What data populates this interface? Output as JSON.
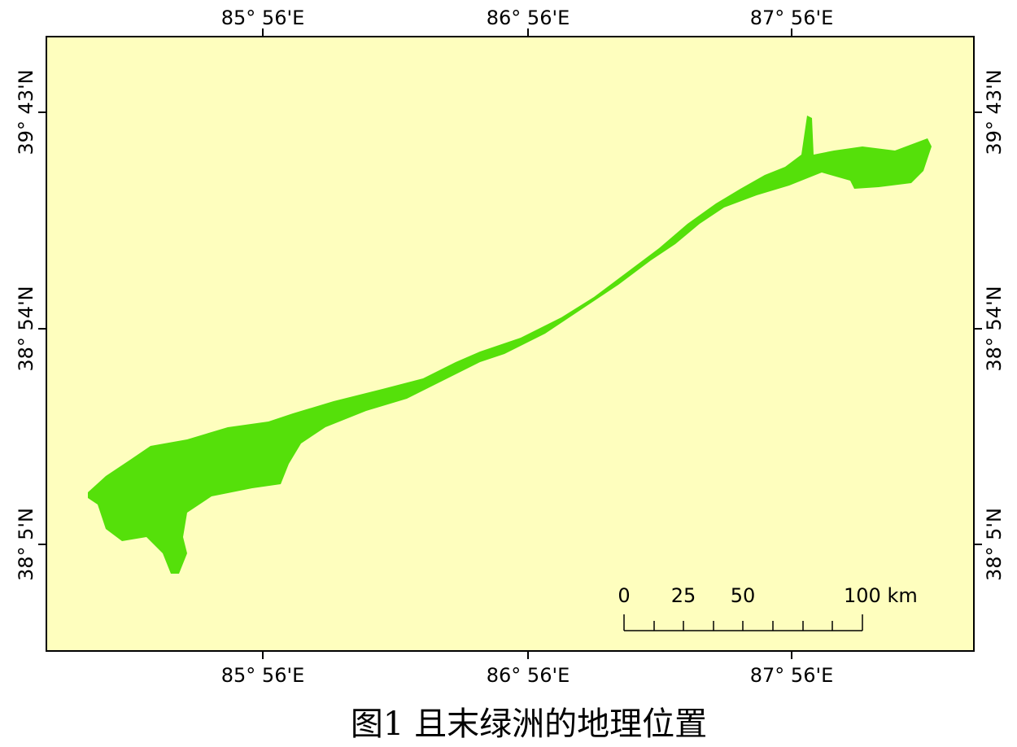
{
  "map": {
    "x_labels": [
      "85° 56'E",
      "86° 56'E",
      "87° 56'E"
    ],
    "y_labels": [
      "39° 43'N",
      "38° 54'N",
      "38° 5'N"
    ],
    "scale_bar": {
      "labels": [
        "0",
        "25",
        "50",
        "100 km"
      ]
    }
  },
  "caption": "图1 且末绿洲的地理位置"
}
